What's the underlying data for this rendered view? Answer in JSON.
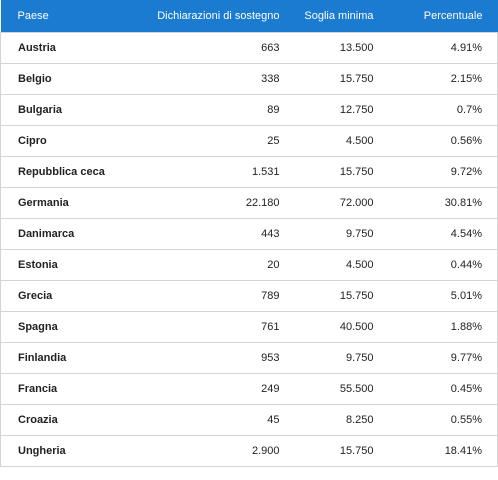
{
  "table": {
    "header": [
      "Paese",
      "Dichiarazioni di sostegno",
      "Soglia minima",
      "Percentuale"
    ],
    "rows": [
      [
        "Austria",
        "663",
        "13.500",
        "4.91%"
      ],
      [
        "Belgio",
        "338",
        "15.750",
        "2.15%"
      ],
      [
        "Bulgaria",
        "89",
        "12.750",
        "0.7%"
      ],
      [
        "Cipro",
        "25",
        "4.500",
        "0.56%"
      ],
      [
        "Repubblica ceca",
        "1.531",
        "15.750",
        "9.72%"
      ],
      [
        "Germania",
        "22.180",
        "72.000",
        "30.81%"
      ],
      [
        "Danimarca",
        "443",
        "9.750",
        "4.54%"
      ],
      [
        "Estonia",
        "20",
        "4.500",
        "0.44%"
      ],
      [
        "Grecia",
        "789",
        "15.750",
        "5.01%"
      ],
      [
        "Spagna",
        "761",
        "40.500",
        "1.88%"
      ],
      [
        "Finlandia",
        "953",
        "9.750",
        "9.77%"
      ],
      [
        "Francia",
        "249",
        "55.500",
        "0.45%"
      ],
      [
        "Croazia",
        "45",
        "8.250",
        "0.55%"
      ],
      [
        "Ungheria",
        "2.900",
        "15.750",
        "18.41%"
      ]
    ]
  }
}
